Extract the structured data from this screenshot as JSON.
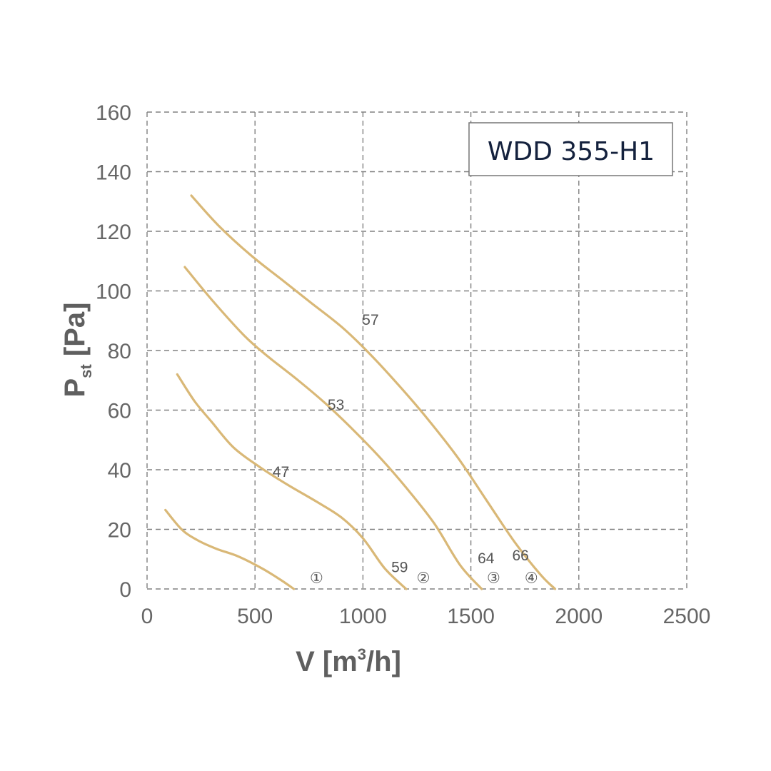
{
  "chart_data": {
    "type": "line",
    "model_label": "WDD 355-H1",
    "xlabel": {
      "main": "V [m",
      "sup": "3",
      "rest": "/h]"
    },
    "ylabel": {
      "main": "P",
      "sub": "st",
      "rest": " [Pa]"
    },
    "xlim": [
      0,
      2500
    ],
    "ylim": [
      0,
      160
    ],
    "xticks": [
      0,
      500,
      1000,
      1500,
      2000,
      2500
    ],
    "xtick_labels": [
      "0",
      "500",
      "1000",
      "1500",
      "2000",
      "2500"
    ],
    "yticks": [
      0,
      20,
      40,
      60,
      80,
      100,
      120,
      140,
      160
    ],
    "ytick_labels": [
      "0",
      "20",
      "40",
      "60",
      "80",
      "100",
      "120",
      "140",
      "160"
    ],
    "grid": true,
    "line_color": "#d9b877",
    "series": [
      {
        "name": "①",
        "x": [
          85,
          160,
          230,
          320,
          420,
          530,
          620,
          680
        ],
        "y": [
          26.5,
          20,
          16.5,
          13.5,
          11,
          7,
          3,
          0
        ]
      },
      {
        "name": "②",
        "x": [
          140,
          220,
          300,
          400,
          520,
          650,
          780,
          900,
          1000,
          1100,
          1200
        ],
        "y": [
          72,
          63,
          56,
          47.5,
          41,
          35,
          29.5,
          24,
          17,
          7,
          0
        ]
      },
      {
        "name": "③",
        "x": [
          175,
          300,
          450,
          560,
          700,
          830,
          960,
          1080,
          1200,
          1330,
          1450,
          1550
        ],
        "y": [
          108,
          97,
          85,
          78,
          70,
          62,
          53,
          44,
          34,
          22,
          8,
          0
        ]
      },
      {
        "name": "④",
        "x": [
          205,
          330,
          480,
          620,
          760,
          900,
          1030,
          1170,
          1300,
          1440,
          1570,
          1700,
          1820,
          1890
        ],
        "y": [
          132,
          122,
          112,
          104,
          96,
          88,
          79,
          68,
          57,
          44,
          30,
          16,
          5,
          0
        ]
      }
    ],
    "annotations": [
      {
        "text": "47",
        "x": 620,
        "y": 39.5
      },
      {
        "text": "53",
        "x": 875,
        "y": 62
      },
      {
        "text": "57",
        "x": 1035,
        "y": 90.5
      },
      {
        "text": "59",
        "x": 1170,
        "y": 7.5
      },
      {
        "text": "64",
        "x": 1570,
        "y": 10.5
      },
      {
        "text": "66",
        "x": 1730,
        "y": 11.5
      },
      {
        "text": "①",
        "x": 785,
        "y": 4
      },
      {
        "text": "②",
        "x": 1280,
        "y": 4
      },
      {
        "text": "③",
        "x": 1605,
        "y": 4
      },
      {
        "text": "④",
        "x": 1780,
        "y": 4
      }
    ]
  }
}
